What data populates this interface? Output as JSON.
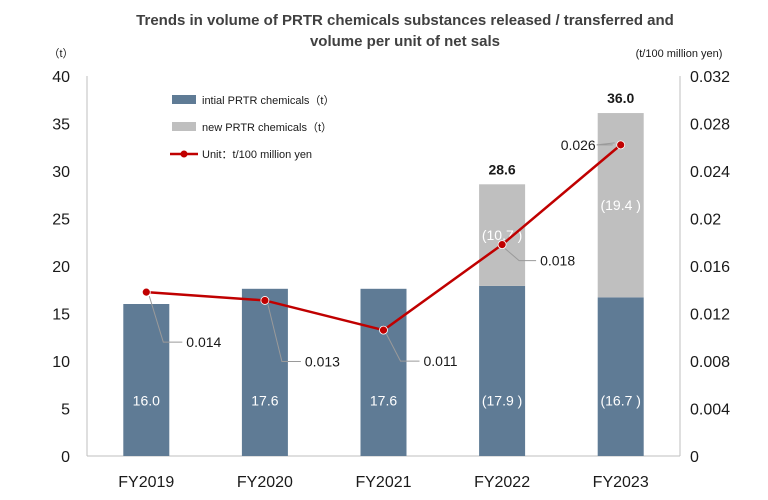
{
  "chart_data": {
    "type": "bar",
    "title_lines": [
      "Trends in volume of PRTR chemicals substances released / transferred and",
      "volume per unit of net sals"
    ],
    "left_unit": "（t）",
    "right_unit": "(t/100 million yen)",
    "categories": [
      "FY2019",
      "FY2020",
      "FY2021",
      "FY2022",
      "FY2023"
    ],
    "left_axis": {
      "ylim": [
        0,
        40
      ],
      "ticks": [
        "0",
        "5",
        "10",
        "15",
        "20",
        "25",
        "30",
        "35",
        "40"
      ]
    },
    "right_axis": {
      "ylim": [
        0,
        0.032
      ],
      "ticks": [
        "0",
        "0.004",
        "0.008",
        "0.012",
        "0.016",
        "0.02",
        "0.024",
        "0.028",
        "0.032"
      ]
    },
    "series": [
      {
        "name": "intial PRTR chemicals（t）",
        "kind": "stacked-bar",
        "color": "#5f7b95",
        "values": [
          16.0,
          17.6,
          17.6,
          17.9,
          16.7
        ],
        "labels": [
          "16.0",
          "17.6",
          "17.6",
          "(17.9 )",
          "(16.7 )"
        ]
      },
      {
        "name": "new PRTR chemicals（t）",
        "kind": "stacked-bar",
        "color": "#bfbfbf",
        "values": [
          0,
          0,
          0,
          10.7,
          19.4
        ],
        "labels": [
          "",
          "",
          "",
          "(10.7 )",
          "(19.4 )"
        ]
      },
      {
        "name": "Unit：t/100 million yen",
        "kind": "line",
        "axis": "right",
        "color": "#c00000",
        "values": [
          0.0138,
          0.0131,
          0.0106,
          0.0178,
          0.0262
        ],
        "labels": [
          "0.014",
          "0.013",
          "0.011",
          "0.018",
          "0.026"
        ]
      }
    ],
    "totals": [
      "",
      "",
      "",
      "28.6",
      "36.0"
    ],
    "legend_position": "top-left",
    "grid": false
  }
}
